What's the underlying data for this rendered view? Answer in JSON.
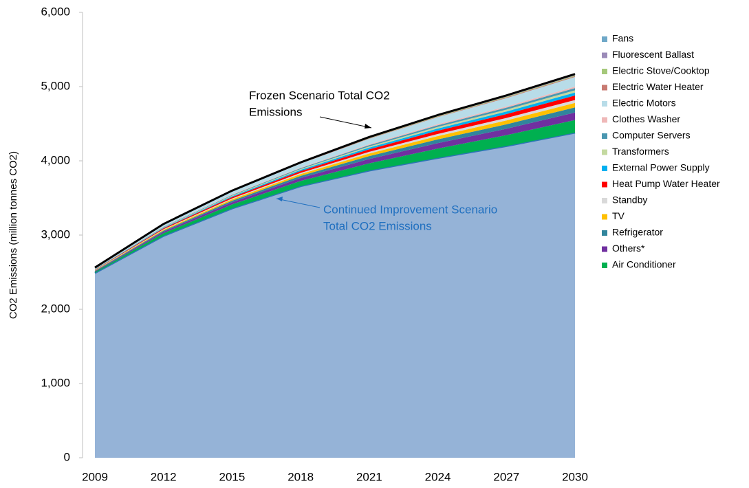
{
  "chart_data": {
    "type": "stacked_area",
    "y_label": "CO2 Emissions (million tonnes CO2)",
    "x": [
      2009,
      2012,
      2015,
      2018,
      2021,
      2024,
      2027,
      2030
    ],
    "xlim": [
      2009,
      2030
    ],
    "xticks": [
      2009,
      2012,
      2015,
      2018,
      2021,
      2024,
      2027,
      2030
    ],
    "ylim": [
      0,
      6000
    ],
    "yticks": [
      0,
      {
        "value": 1000,
        "label": "1,000"
      },
      {
        "value": 2000,
        "label": "2,000"
      },
      {
        "value": 3000,
        "label": "3,000"
      },
      {
        "value": 4000,
        "label": "4,000"
      },
      {
        "value": 5000,
        "label": "5,000"
      },
      {
        "value": 6000,
        "label": "6,000"
      }
    ],
    "annotations": [
      {
        "lines": [
          "Frozen Scenario Total CO2",
          "Emissions"
        ],
        "color": "#000000"
      },
      {
        "lines": [
          "Continued Improvement Scenario",
          "Total CO2 Emissions"
        ],
        "color": "#1f6fbf"
      }
    ],
    "series": [
      {
        "color": "#95b3d7",
        "values": [
          2490,
          2990,
          3360,
          3660,
          3870,
          4040,
          4200,
          4380
        ]
      },
      {
        "name": "Air Conditioner",
        "color": "#00b050",
        "values": [
          15,
          35,
          52,
          69,
          97,
          125,
          146,
          170
        ]
      },
      {
        "name": "Others*",
        "color": "#7030a0",
        "values": [
          9,
          20,
          30,
          41,
          57,
          73,
          86,
          100
        ]
      },
      {
        "name": "Refrigerator",
        "color": "#31859c",
        "values": [
          6,
          14,
          21,
          28,
          40,
          51,
          60,
          70
        ]
      },
      {
        "name": "TV",
        "color": "#ffc000",
        "values": [
          5,
          12,
          18,
          24,
          34,
          44,
          52,
          60
        ]
      },
      {
        "name": "Standby",
        "color": "#d9d9d9",
        "values": [
          4,
          8,
          12,
          16,
          23,
          29,
          34,
          40
        ]
      },
      {
        "name": "Heat Pump Water Heater",
        "color": "#ff0000",
        "values": [
          5,
          12,
          18,
          24,
          34,
          44,
          52,
          60
        ]
      },
      {
        "name": "External Power Supply",
        "color": "#00b0f0",
        "values": [
          4,
          8,
          12,
          16,
          23,
          29,
          34,
          40
        ]
      },
      {
        "name": "Transformers",
        "color": "#c4d9a0",
        "values": [
          3,
          6,
          9,
          12,
          17,
          22,
          26,
          30
        ]
      },
      {
        "name": "Computer Servers",
        "color": "#4a97b0",
        "values": [
          3,
          6,
          9,
          12,
          17,
          22,
          26,
          30
        ]
      },
      {
        "name": "Clothes Washer",
        "color": "#efb8b8",
        "values": [
          2,
          4,
          6,
          8,
          11,
          15,
          17,
          20
        ]
      },
      {
        "name": "Electric Motors",
        "color": "#b8dce8",
        "values": [
          12,
          26,
          40,
          53,
          74,
          95,
          112,
          130
        ]
      },
      {
        "name": "Electric Water Heater",
        "color": "#c87a72",
        "values": [
          1,
          2,
          3,
          4,
          6,
          7,
          9,
          10
        ]
      },
      {
        "name": "Electric Stove/Cooktop",
        "color": "#a5c87a",
        "values": [
          1,
          2,
          3,
          4,
          6,
          7,
          9,
          10
        ]
      },
      {
        "name": "Fluorescent Ballast",
        "color": "#9b8bb8",
        "values": [
          1,
          2,
          3,
          4,
          6,
          7,
          9,
          10
        ]
      },
      {
        "name": "Fans",
        "color": "#6fa8c8",
        "values": [
          1,
          2,
          3,
          4,
          6,
          7,
          9,
          10
        ]
      }
    ]
  }
}
